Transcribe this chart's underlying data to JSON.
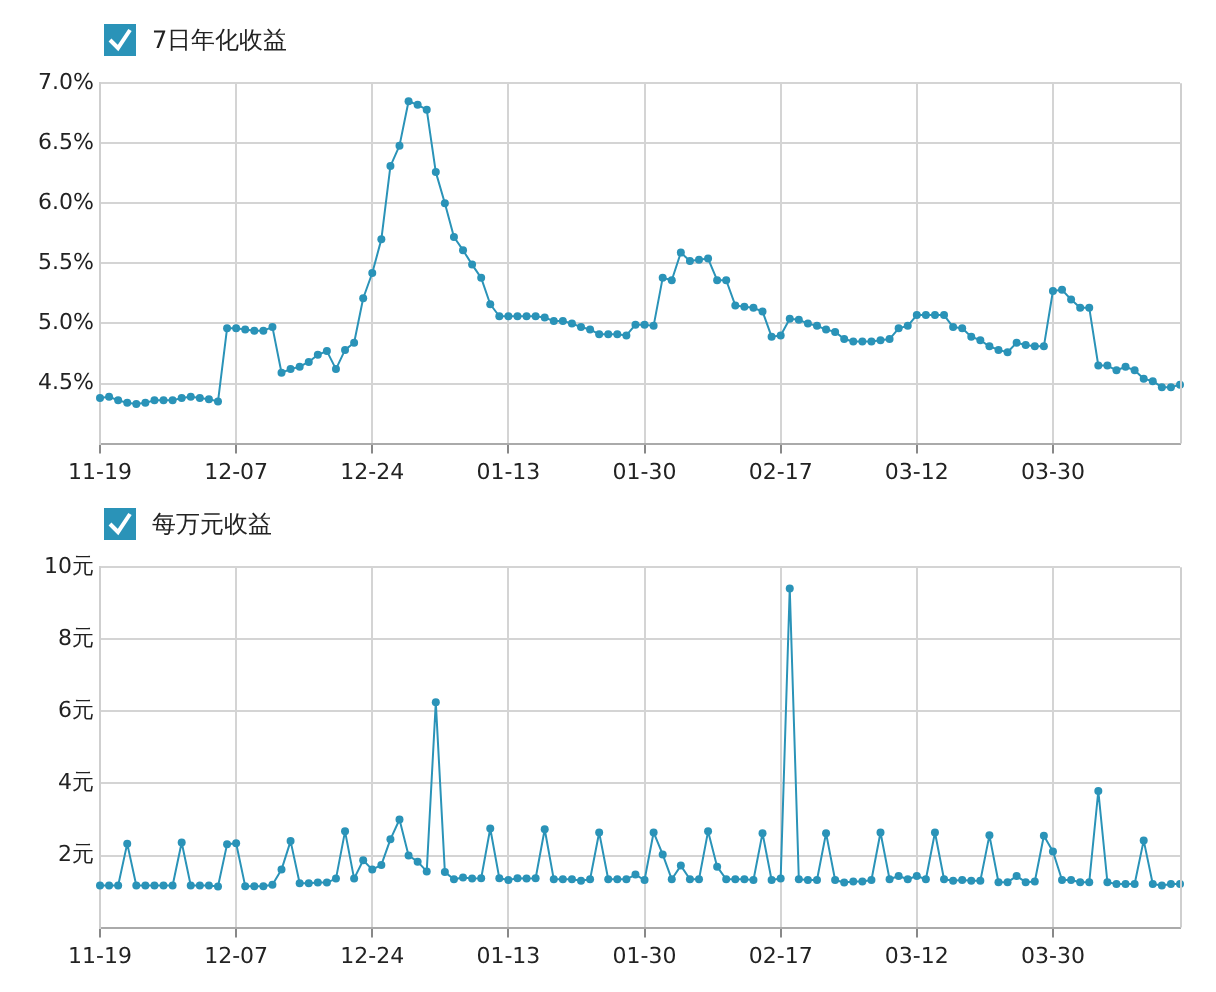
{
  "chart_data": [
    {
      "type": "line",
      "title": "7日年化收益",
      "categories": [
        "11-19",
        null,
        null,
        null,
        null,
        null,
        null,
        null,
        null,
        null,
        null,
        null,
        null,
        null,
        null,
        "12-07",
        null,
        null,
        null,
        null,
        null,
        null,
        null,
        null,
        null,
        null,
        null,
        null,
        null,
        null,
        "12-24",
        null,
        null,
        null,
        null,
        null,
        null,
        null,
        null,
        null,
        null,
        null,
        null,
        null,
        null,
        "01-13",
        null,
        null,
        null,
        null,
        null,
        null,
        null,
        null,
        null,
        null,
        null,
        null,
        null,
        null,
        "01-30",
        null,
        null,
        null,
        null,
        null,
        null,
        null,
        null,
        null,
        null,
        null,
        null,
        null,
        null,
        "02-17",
        null,
        null,
        null,
        null,
        null,
        null,
        null,
        null,
        null,
        null,
        null,
        null,
        null,
        null,
        "03-12",
        null,
        null,
        null,
        null,
        null,
        null,
        null,
        null,
        null,
        null,
        null,
        null,
        null,
        null,
        "03-30",
        null,
        null,
        null,
        null,
        null,
        null,
        null,
        null,
        null,
        null,
        null,
        null,
        null,
        null
      ],
      "series": [
        {
          "color": "#2a93b8",
          "values": [
            4.38,
            4.39,
            4.36,
            4.34,
            4.33,
            4.34,
            4.36,
            4.36,
            4.36,
            4.38,
            4.39,
            4.38,
            4.37,
            4.35,
            4.96,
            4.96,
            4.95,
            4.94,
            4.94,
            4.97,
            4.59,
            4.62,
            4.64,
            4.68,
            4.74,
            4.77,
            4.62,
            4.78,
            4.84,
            5.21,
            5.42,
            5.7,
            6.31,
            6.48,
            6.85,
            6.82,
            6.78,
            6.26,
            6.0,
            5.72,
            5.61,
            5.49,
            5.38,
            5.16,
            5.06,
            5.06,
            5.06,
            5.06,
            5.06,
            5.05,
            5.02,
            5.02,
            5.0,
            4.97,
            4.95,
            4.91,
            4.91,
            4.91,
            4.9,
            4.99,
            4.99,
            4.98,
            5.38,
            5.36,
            5.59,
            5.52,
            5.53,
            5.54,
            5.36,
            5.36,
            5.15,
            5.14,
            5.13,
            5.1,
            4.89,
            4.9,
            5.04,
            5.03,
            5.0,
            4.98,
            4.95,
            4.93,
            4.87,
            4.85,
            4.85,
            4.85,
            4.86,
            4.87,
            4.96,
            4.98,
            5.07,
            5.07,
            5.07,
            5.07,
            4.97,
            4.96,
            4.89,
            4.86,
            4.81,
            4.78,
            4.76,
            4.84,
            4.82,
            4.81,
            4.81,
            5.27,
            5.28,
            5.2,
            5.13,
            5.13,
            4.65,
            4.65,
            4.61,
            4.64,
            4.61,
            4.54,
            4.52,
            4.47,
            4.47,
            4.49
          ]
        }
      ],
      "ylim": [
        4.0,
        7.0
      ],
      "yticks": [
        {
          "value": 4.0,
          "label": null
        },
        {
          "value": 4.5,
          "label": "4.5%"
        },
        {
          "value": 5.0,
          "label": "5.0%"
        },
        {
          "value": 5.5,
          "label": "5.5%"
        },
        {
          "value": 6.0,
          "label": "6.0%"
        },
        {
          "value": 6.5,
          "label": "6.5%"
        },
        {
          "value": 7.0,
          "label": "7.0%"
        }
      ],
      "grid": true,
      "marker": "circle"
    },
    {
      "type": "line",
      "title": "每万元收益",
      "categories": [
        "11-19",
        null,
        null,
        null,
        null,
        null,
        null,
        null,
        null,
        null,
        null,
        null,
        null,
        null,
        null,
        "12-07",
        null,
        null,
        null,
        null,
        null,
        null,
        null,
        null,
        null,
        null,
        null,
        null,
        null,
        null,
        "12-24",
        null,
        null,
        null,
        null,
        null,
        null,
        null,
        null,
        null,
        null,
        null,
        null,
        null,
        null,
        "01-13",
        null,
        null,
        null,
        null,
        null,
        null,
        null,
        null,
        null,
        null,
        null,
        null,
        null,
        null,
        "01-30",
        null,
        null,
        null,
        null,
        null,
        null,
        null,
        null,
        null,
        null,
        null,
        null,
        null,
        null,
        "02-17",
        null,
        null,
        null,
        null,
        null,
        null,
        null,
        null,
        null,
        null,
        null,
        null,
        null,
        null,
        "03-12",
        null,
        null,
        null,
        null,
        null,
        null,
        null,
        null,
        null,
        null,
        null,
        null,
        null,
        null,
        "03-30",
        null,
        null,
        null,
        null,
        null,
        null,
        null,
        null,
        null,
        null,
        null,
        null,
        null,
        null
      ],
      "series": [
        {
          "color": "#2a93b8",
          "values": [
            1.17,
            1.17,
            1.17,
            2.33,
            1.17,
            1.17,
            1.17,
            1.17,
            1.17,
            2.36,
            1.17,
            1.17,
            1.17,
            1.14,
            2.31,
            2.34,
            1.15,
            1.15,
            1.15,
            1.19,
            1.61,
            2.4,
            1.23,
            1.23,
            1.25,
            1.25,
            1.36,
            2.67,
            1.36,
            1.87,
            1.61,
            1.74,
            2.45,
            3.0,
            2.0,
            1.83,
            1.56,
            6.25,
            1.54,
            1.34,
            1.39,
            1.36,
            1.37,
            2.75,
            1.37,
            1.32,
            1.37,
            1.36,
            1.37,
            2.73,
            1.34,
            1.34,
            1.34,
            1.3,
            1.34,
            2.64,
            1.34,
            1.34,
            1.34,
            1.47,
            1.32,
            2.64,
            2.03,
            1.34,
            1.72,
            1.34,
            1.34,
            2.67,
            1.69,
            1.34,
            1.34,
            1.34,
            1.32,
            2.62,
            1.32,
            1.36,
            9.41,
            1.34,
            1.32,
            1.32,
            2.62,
            1.32,
            1.25,
            1.28,
            1.28,
            1.32,
            2.64,
            1.34,
            1.43,
            1.34,
            1.43,
            1.34,
            2.64,
            1.34,
            1.3,
            1.32,
            1.3,
            1.3,
            2.56,
            1.26,
            1.26,
            1.43,
            1.26,
            1.28,
            2.55,
            2.11,
            1.32,
            1.32,
            1.26,
            1.26,
            3.79,
            1.26,
            1.21,
            1.21,
            1.21,
            2.42,
            1.21,
            1.17,
            1.21,
            1.21
          ]
        }
      ],
      "ylim": [
        0,
        10
      ],
      "yticks": [
        {
          "value": 0,
          "label": null
        },
        {
          "value": 2,
          "label": "2元"
        },
        {
          "value": 4,
          "label": "4元"
        },
        {
          "value": 6,
          "label": "6元"
        },
        {
          "value": 8,
          "label": "8元"
        },
        {
          "value": 10,
          "label": "10元"
        }
      ],
      "grid": true,
      "marker": "circle"
    }
  ]
}
